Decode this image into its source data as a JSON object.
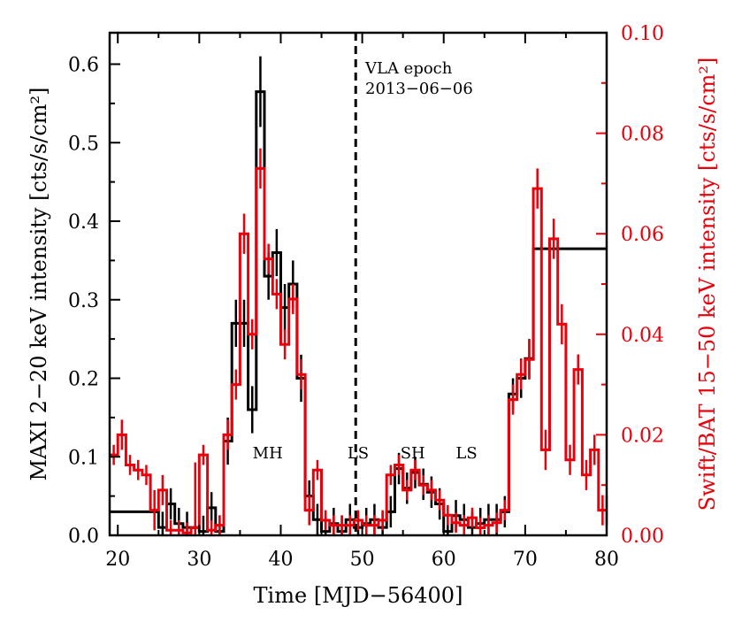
{
  "chart_data": {
    "type": "line",
    "title": "",
    "xlabel": "Time [MJD−56400]",
    "ylabel_left": "MAXI 2−20 keV intensity [cts/s/cm²]",
    "ylabel_right": "Swift/BAT 15−50 keV intensity [cts/s/cm²]",
    "xlim": [
      19,
      80
    ],
    "ylim_left": [
      0,
      0.64
    ],
    "ylim_right": [
      0,
      0.1
    ],
    "x_ticks": [
      20,
      30,
      40,
      50,
      60,
      70,
      80
    ],
    "x_tick_labels": [
      "20",
      "30",
      "40",
      "50",
      "60",
      "70",
      "80"
    ],
    "y_left_ticks": [
      0,
      0.1,
      0.2,
      0.3,
      0.4,
      0.5,
      0.6
    ],
    "y_left_tick_labels": [
      "0.0",
      "0.1",
      "0.2",
      "0.3",
      "0.4",
      "0.5",
      "0.6"
    ],
    "y_right_ticks": [
      0,
      0.02,
      0.04,
      0.06,
      0.08,
      0.1
    ],
    "y_right_tick_labels": [
      "0.00",
      "0.02",
      "0.04",
      "0.06",
      "0.08",
      "0.10"
    ],
    "vline": {
      "x": 49.2,
      "label_line1": "VLA epoch",
      "label_line2": "2013−06−06"
    },
    "state_labels": [
      {
        "text": "MH",
        "x": 38.4,
        "y": 0.105
      },
      {
        "text": "LS",
        "x": 49.5,
        "y": 0.105
      },
      {
        "text": "SH",
        "x": 56.2,
        "y": 0.105
      },
      {
        "text": "LS",
        "x": 62.8,
        "y": 0.105
      }
    ],
    "series": [
      {
        "name": "MAXI 2–20 keV",
        "color": "#000000",
        "axis": "left",
        "x": [
          19,
          25,
          26,
          27,
          28,
          29,
          30,
          31,
          32,
          33,
          34,
          35,
          36,
          37,
          38,
          39,
          40,
          41,
          42,
          43,
          44,
          45,
          46,
          47,
          48,
          49,
          50,
          51,
          52,
          53,
          54,
          55,
          56,
          57,
          58,
          59,
          60,
          61,
          62,
          63,
          64,
          65,
          66,
          67,
          68,
          69,
          70,
          71,
          80
        ],
        "y": [
          0.03,
          0.01,
          0.04,
          0.015,
          0.01,
          0.01,
          0.005,
          0.035,
          0.005,
          0.12,
          0.27,
          0.27,
          0.16,
          0.565,
          0.33,
          0.36,
          0.29,
          0.32,
          0.2,
          0.05,
          0.02,
          0.005,
          0.015,
          0.005,
          0.02,
          0.01,
          0.015,
          0.02,
          0.01,
          0.03,
          0.085,
          0.06,
          0.08,
          0.065,
          0.055,
          0.04,
          0.005,
          0.025,
          0.02,
          0.01,
          0.015,
          0.02,
          0.02,
          0.03,
          0.18,
          0.2,
          0.225,
          0.365,
          0.365
        ],
        "err": [
          0,
          0.02,
          0.02,
          0.02,
          0.02,
          0.02,
          0.02,
          0.02,
          0.02,
          0.03,
          0.03,
          0.03,
          0.03,
          0.045,
          0.03,
          0.03,
          0.03,
          0.03,
          0.03,
          0.02,
          0.02,
          0.02,
          0.02,
          0.02,
          0.02,
          0.02,
          0.02,
          0.02,
          0.02,
          0.02,
          0.02,
          0.02,
          0.02,
          0.02,
          0.02,
          0.02,
          0.02,
          0.02,
          0.02,
          0.02,
          0.02,
          0.02,
          0.02,
          0.02,
          0.02,
          0.025,
          0.025,
          0,
          0
        ]
      },
      {
        "name": "Swift/BAT 15–50 keV",
        "color": "#e8000b",
        "axis": "right",
        "x": [
          19,
          20,
          21,
          22,
          23,
          24,
          25,
          26,
          27,
          28,
          29,
          30,
          31,
          32,
          33,
          34,
          35,
          36,
          37,
          38,
          39,
          40,
          41,
          42,
          43,
          44,
          45,
          46,
          47,
          48,
          49,
          50,
          51,
          52,
          53,
          54,
          55,
          56,
          57,
          58,
          59,
          60,
          61,
          62,
          63,
          64,
          65,
          66,
          67,
          68,
          69,
          70,
          71,
          72,
          73,
          74,
          75,
          76,
          77,
          78,
          79,
          80
        ],
        "y": [
          0.016,
          0.02,
          0.014,
          0.013,
          0.012,
          0.005,
          0.009,
          0.001,
          0.001,
          0.0005,
          0.0015,
          0.016,
          0.001,
          0.002,
          0.02,
          0.03,
          0.06,
          0.04,
          0.073,
          0.055,
          0.048,
          0.038,
          0.047,
          0.032,
          0.005,
          0.013,
          0.003,
          0.002,
          0.002,
          0.002,
          0.003,
          0.002,
          0.002,
          0.003,
          0.012,
          0.014,
          0.009,
          0.013,
          0.01,
          0.009,
          0.007,
          0.004,
          0.0025,
          0.002,
          0.0035,
          0.0015,
          0.002,
          0.0025,
          0.005,
          0.027,
          0.032,
          0.035,
          0.069,
          0.017,
          0.059,
          0.042,
          0.015,
          0.033,
          0.012,
          0.017,
          0.005,
          0.005
        ],
        "err": [
          0.002,
          0.003,
          0.002,
          0.002,
          0.002,
          0.004,
          0.003,
          0.002,
          0.002,
          0.002,
          0.013,
          0.002,
          0.002,
          0.002,
          0.003,
          0.003,
          0.004,
          0.003,
          0.004,
          0.003,
          0.003,
          0.003,
          0.003,
          0.003,
          0.003,
          0.002,
          0.002,
          0.002,
          0.002,
          0.002,
          0.002,
          0.002,
          0.002,
          0.002,
          0.002,
          0.002,
          0.002,
          0.002,
          0.002,
          0.002,
          0.002,
          0.002,
          0.002,
          0.002,
          0.002,
          0.002,
          0.002,
          0.002,
          0.002,
          0.003,
          0.003,
          0.004,
          0.004,
          0.004,
          0.004,
          0.004,
          0.003,
          0.003,
          0.003,
          0.003,
          0.003,
          0.003
        ]
      }
    ]
  }
}
